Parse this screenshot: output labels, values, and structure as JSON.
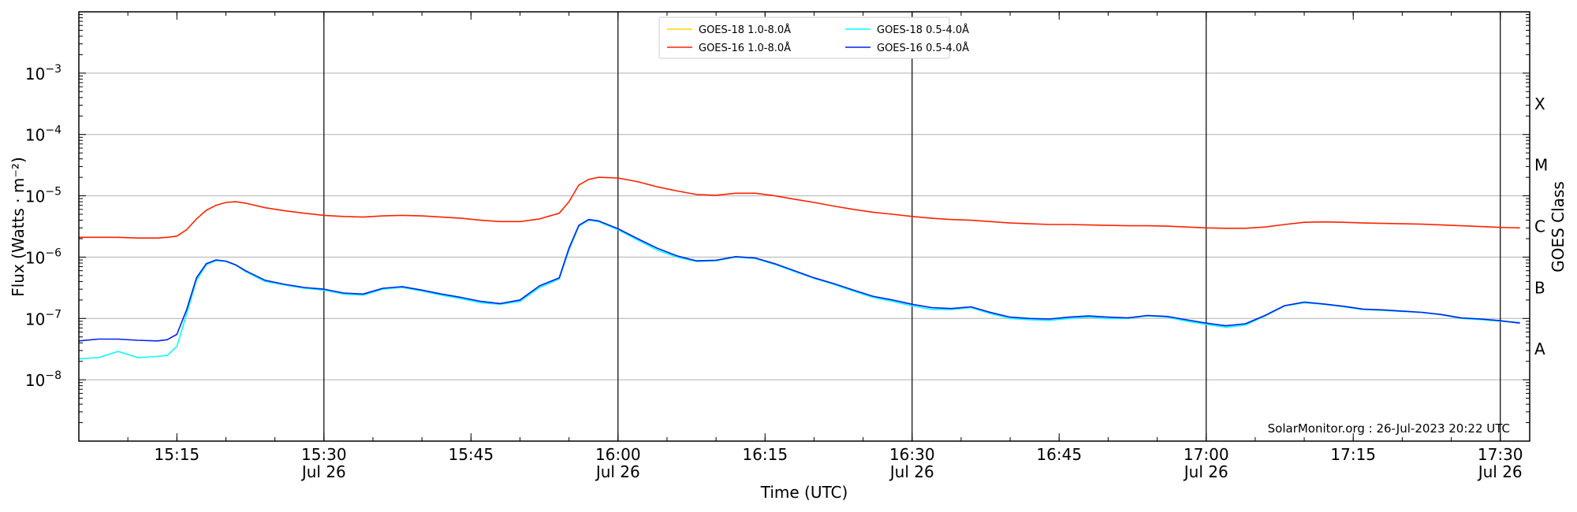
{
  "chart_data": {
    "type": "line",
    "title": "",
    "xlabel": "Time (UTC)",
    "ylabel": "Flux (Watts · m⁻²)",
    "y2label": "GOES Class",
    "yscale": "log",
    "ylim": [
      1e-09,
      0.01
    ],
    "xlim": [
      "15:05",
      "17:33"
    ],
    "grid": "horizontal at decades",
    "legend_position": "top-center",
    "x_ticks": [
      {
        "t": "15:15",
        "label": "15:15",
        "sublabel": ""
      },
      {
        "t": "15:30",
        "label": "15:30",
        "sublabel": "Jul 26"
      },
      {
        "t": "15:45",
        "label": "15:45",
        "sublabel": ""
      },
      {
        "t": "16:00",
        "label": "16:00",
        "sublabel": "Jul 26"
      },
      {
        "t": "16:15",
        "label": "16:15",
        "sublabel": ""
      },
      {
        "t": "16:30",
        "label": "16:30",
        "sublabel": "Jul 26"
      },
      {
        "t": "16:45",
        "label": "16:45",
        "sublabel": ""
      },
      {
        "t": "17:00",
        "label": "17:00",
        "sublabel": "Jul 26"
      },
      {
        "t": "17:15",
        "label": "17:15",
        "sublabel": ""
      },
      {
        "t": "17:30",
        "label": "17:30",
        "sublabel": "Jul 26"
      }
    ],
    "vertical_lines": [
      "15:30",
      "16:00",
      "16:30",
      "17:00",
      "17:30"
    ],
    "y_ticks": [
      {
        "value": 1e-08,
        "base": "10",
        "exp": "−8"
      },
      {
        "value": 1e-07,
        "base": "10",
        "exp": "−7"
      },
      {
        "value": 1e-06,
        "base": "10",
        "exp": "−6"
      },
      {
        "value": 1e-05,
        "base": "10",
        "exp": "−5"
      },
      {
        "value": 0.0001,
        "base": "10",
        "exp": "−4"
      },
      {
        "value": 0.001,
        "base": "10",
        "exp": "−3"
      }
    ],
    "goes_classes": [
      {
        "label": "A",
        "value": 3.16e-08
      },
      {
        "label": "B",
        "value": 3.16e-07
      },
      {
        "label": "C",
        "value": 3.16e-06
      },
      {
        "label": "M",
        "value": 3.16e-05
      },
      {
        "label": "X",
        "value": 0.000316
      }
    ],
    "annotation": "SolarMonitor.org : 26-Jul-2023 20:22 UTC",
    "series": [
      {
        "name": "GOES-18 1.0-8.0Å",
        "color": "#ffd700",
        "points": []
      },
      {
        "name": "GOES-18 0.5-4.0Å",
        "color": "#00ffff",
        "points": [
          [
            "15:05",
            2.2e-08
          ],
          [
            "15:07",
            2.3e-08
          ],
          [
            "15:09",
            2.9e-08
          ],
          [
            "15:11",
            2.3e-08
          ],
          [
            "15:13",
            2.4e-08
          ],
          [
            "15:14",
            2.5e-08
          ],
          [
            "15:15",
            3.5e-08
          ],
          [
            "15:16",
            1.2e-07
          ],
          [
            "15:17",
            4.2e-07
          ],
          [
            "15:18",
            7.5e-07
          ],
          [
            "15:19",
            8.8e-07
          ],
          [
            "15:20",
            8.5e-07
          ],
          [
            "15:21",
            7.4e-07
          ],
          [
            "15:22",
            5.8e-07
          ],
          [
            "15:24",
            4e-07
          ],
          [
            "15:26",
            3.5e-07
          ],
          [
            "15:28",
            3.1e-07
          ],
          [
            "15:30",
            2.9e-07
          ],
          [
            "15:32",
            2.5e-07
          ],
          [
            "15:34",
            2.4e-07
          ],
          [
            "15:36",
            3e-07
          ],
          [
            "15:38",
            3.2e-07
          ],
          [
            "15:40",
            2.8e-07
          ],
          [
            "15:42",
            2.4e-07
          ],
          [
            "15:44",
            2.1e-07
          ],
          [
            "15:46",
            1.8e-07
          ],
          [
            "15:48",
            1.7e-07
          ],
          [
            "15:50",
            1.9e-07
          ],
          [
            "15:52",
            3.2e-07
          ],
          [
            "15:54",
            4.4e-07
          ],
          [
            "15:55",
            1.3e-06
          ],
          [
            "15:56",
            3.2e-06
          ],
          [
            "15:57",
            4e-06
          ],
          [
            "15:58",
            3.8e-06
          ],
          [
            "16:00",
            2.8e-06
          ],
          [
            "16:02",
            1.9e-06
          ],
          [
            "16:04",
            1.3e-06
          ],
          [
            "16:06",
            1e-06
          ],
          [
            "16:08",
            8.5e-07
          ],
          [
            "16:10",
            8.7e-07
          ],
          [
            "16:12",
            1e-06
          ],
          [
            "16:14",
            9.5e-07
          ],
          [
            "16:16",
            7.6e-07
          ],
          [
            "16:18",
            5.8e-07
          ],
          [
            "16:20",
            4.5e-07
          ],
          [
            "16:22",
            3.6e-07
          ],
          [
            "16:24",
            2.8e-07
          ],
          [
            "16:26",
            2.2e-07
          ],
          [
            "16:28",
            1.9e-07
          ],
          [
            "16:30",
            1.6e-07
          ],
          [
            "16:32",
            1.4e-07
          ],
          [
            "16:34",
            1.4e-07
          ],
          [
            "16:36",
            1.5e-07
          ],
          [
            "16:38",
            1.2e-07
          ],
          [
            "16:40",
            1e-07
          ],
          [
            "16:42",
            9.5e-08
          ],
          [
            "16:44",
            9.3e-08
          ],
          [
            "16:46",
            1e-07
          ],
          [
            "16:48",
            1.05e-07
          ],
          [
            "16:50",
            1e-07
          ],
          [
            "16:52",
            1e-07
          ],
          [
            "16:54",
            1.1e-07
          ],
          [
            "16:56",
            1.05e-07
          ],
          [
            "16:58",
            9e-08
          ],
          [
            "17:00",
            8e-08
          ],
          [
            "17:02",
            7.2e-08
          ],
          [
            "17:04",
            7.8e-08
          ],
          [
            "17:06",
            1.1e-07
          ],
          [
            "17:08",
            1.6e-07
          ],
          [
            "17:10",
            1.8e-07
          ],
          [
            "17:12",
            1.7e-07
          ],
          [
            "17:14",
            1.55e-07
          ],
          [
            "17:16",
            1.4e-07
          ],
          [
            "17:18",
            1.35e-07
          ],
          [
            "17:20",
            1.3e-07
          ],
          [
            "17:22",
            1.25e-07
          ],
          [
            "17:24",
            1.15e-07
          ],
          [
            "17:26",
            1e-07
          ],
          [
            "17:28",
            9.6e-08
          ],
          [
            "17:30",
            9e-08
          ],
          [
            "17:32",
            8.6e-08
          ]
        ]
      },
      {
        "name": "GOES-16 1.0-8.0Å",
        "color": "#ff2200",
        "points": [
          [
            "15:05",
            2.1e-06
          ],
          [
            "15:07",
            2.1e-06
          ],
          [
            "15:09",
            2.1e-06
          ],
          [
            "15:11",
            2.05e-06
          ],
          [
            "15:13",
            2.05e-06
          ],
          [
            "15:14",
            2.1e-06
          ],
          [
            "15:15",
            2.2e-06
          ],
          [
            "15:16",
            2.8e-06
          ],
          [
            "15:17",
            4.2e-06
          ],
          [
            "15:18",
            5.8e-06
          ],
          [
            "15:19",
            7e-06
          ],
          [
            "15:20",
            7.8e-06
          ],
          [
            "15:21",
            8e-06
          ],
          [
            "15:22",
            7.6e-06
          ],
          [
            "15:24",
            6.4e-06
          ],
          [
            "15:26",
            5.7e-06
          ],
          [
            "15:28",
            5.2e-06
          ],
          [
            "15:30",
            4.8e-06
          ],
          [
            "15:32",
            4.6e-06
          ],
          [
            "15:34",
            4.5e-06
          ],
          [
            "15:36",
            4.7e-06
          ],
          [
            "15:38",
            4.8e-06
          ],
          [
            "15:40",
            4.7e-06
          ],
          [
            "15:42",
            4.5e-06
          ],
          [
            "15:44",
            4.3e-06
          ],
          [
            "15:46",
            4e-06
          ],
          [
            "15:48",
            3.8e-06
          ],
          [
            "15:50",
            3.8e-06
          ],
          [
            "15:52",
            4.2e-06
          ],
          [
            "15:54",
            5.2e-06
          ],
          [
            "15:55",
            8e-06
          ],
          [
            "15:56",
            1.5e-05
          ],
          [
            "15:57",
            1.85e-05
          ],
          [
            "15:58",
            2e-05
          ],
          [
            "16:00",
            1.95e-05
          ],
          [
            "16:02",
            1.7e-05
          ],
          [
            "16:04",
            1.4e-05
          ],
          [
            "16:06",
            1.2e-05
          ],
          [
            "16:08",
            1.05e-05
          ],
          [
            "16:10",
            1.02e-05
          ],
          [
            "16:12",
            1.1e-05
          ],
          [
            "16:14",
            1.1e-05
          ],
          [
            "16:16",
            1e-05
          ],
          [
            "16:18",
            8.8e-06
          ],
          [
            "16:20",
            7.8e-06
          ],
          [
            "16:22",
            6.8e-06
          ],
          [
            "16:24",
            6e-06
          ],
          [
            "16:26",
            5.4e-06
          ],
          [
            "16:28",
            5e-06
          ],
          [
            "16:30",
            4.6e-06
          ],
          [
            "16:32",
            4.3e-06
          ],
          [
            "16:34",
            4.1e-06
          ],
          [
            "16:36",
            4e-06
          ],
          [
            "16:38",
            3.8e-06
          ],
          [
            "16:40",
            3.6e-06
          ],
          [
            "16:42",
            3.5e-06
          ],
          [
            "16:44",
            3.4e-06
          ],
          [
            "16:46",
            3.4e-06
          ],
          [
            "16:48",
            3.35e-06
          ],
          [
            "16:50",
            3.3e-06
          ],
          [
            "16:52",
            3.25e-06
          ],
          [
            "16:54",
            3.25e-06
          ],
          [
            "16:56",
            3.2e-06
          ],
          [
            "16:58",
            3.1e-06
          ],
          [
            "17:00",
            3e-06
          ],
          [
            "17:02",
            2.95e-06
          ],
          [
            "17:04",
            2.95e-06
          ],
          [
            "17:06",
            3.1e-06
          ],
          [
            "17:08",
            3.4e-06
          ],
          [
            "17:10",
            3.7e-06
          ],
          [
            "17:12",
            3.75e-06
          ],
          [
            "17:14",
            3.7e-06
          ],
          [
            "17:16",
            3.6e-06
          ],
          [
            "17:18",
            3.55e-06
          ],
          [
            "17:20",
            3.5e-06
          ],
          [
            "17:22",
            3.45e-06
          ],
          [
            "17:24",
            3.35e-06
          ],
          [
            "17:26",
            3.25e-06
          ],
          [
            "17:28",
            3.15e-06
          ],
          [
            "17:30",
            3.05e-06
          ],
          [
            "17:32",
            3e-06
          ]
        ]
      },
      {
        "name": "GOES-16 0.5-4.0Å",
        "color": "#0022ee",
        "points": [
          [
            "15:05",
            4.3e-08
          ],
          [
            "15:07",
            4.6e-08
          ],
          [
            "15:09",
            4.6e-08
          ],
          [
            "15:11",
            4.4e-08
          ],
          [
            "15:13",
            4.3e-08
          ],
          [
            "15:14",
            4.5e-08
          ],
          [
            "15:15",
            5.5e-08
          ],
          [
            "15:16",
            1.4e-07
          ],
          [
            "15:17",
            4.6e-07
          ],
          [
            "15:18",
            7.8e-07
          ],
          [
            "15:19",
            9e-07
          ],
          [
            "15:20",
            8.6e-07
          ],
          [
            "15:21",
            7.5e-07
          ],
          [
            "15:22",
            6e-07
          ],
          [
            "15:24",
            4.2e-07
          ],
          [
            "15:26",
            3.6e-07
          ],
          [
            "15:28",
            3.2e-07
          ],
          [
            "15:30",
            3e-07
          ],
          [
            "15:32",
            2.6e-07
          ],
          [
            "15:34",
            2.5e-07
          ],
          [
            "15:36",
            3.1e-07
          ],
          [
            "15:38",
            3.3e-07
          ],
          [
            "15:40",
            2.9e-07
          ],
          [
            "15:42",
            2.5e-07
          ],
          [
            "15:44",
            2.2e-07
          ],
          [
            "15:46",
            1.9e-07
          ],
          [
            "15:48",
            1.75e-07
          ],
          [
            "15:50",
            2e-07
          ],
          [
            "15:52",
            3.4e-07
          ],
          [
            "15:54",
            4.6e-07
          ],
          [
            "15:55",
            1.4e-06
          ],
          [
            "15:56",
            3.3e-06
          ],
          [
            "15:57",
            4.1e-06
          ],
          [
            "15:58",
            3.9e-06
          ],
          [
            "16:00",
            2.9e-06
          ],
          [
            "16:02",
            2e-06
          ],
          [
            "16:04",
            1.4e-06
          ],
          [
            "16:06",
            1.05e-06
          ],
          [
            "16:08",
            8.7e-07
          ],
          [
            "16:10",
            8.9e-07
          ],
          [
            "16:12",
            1.02e-06
          ],
          [
            "16:14",
            9.7e-07
          ],
          [
            "16:16",
            7.8e-07
          ],
          [
            "16:18",
            6e-07
          ],
          [
            "16:20",
            4.6e-07
          ],
          [
            "16:22",
            3.7e-07
          ],
          [
            "16:24",
            2.9e-07
          ],
          [
            "16:26",
            2.3e-07
          ],
          [
            "16:28",
            2e-07
          ],
          [
            "16:30",
            1.7e-07
          ],
          [
            "16:32",
            1.5e-07
          ],
          [
            "16:34",
            1.45e-07
          ],
          [
            "16:36",
            1.55e-07
          ],
          [
            "16:38",
            1.25e-07
          ],
          [
            "16:40",
            1.05e-07
          ],
          [
            "16:42",
            1e-07
          ],
          [
            "16:44",
            9.8e-08
          ],
          [
            "16:46",
            1.05e-07
          ],
          [
            "16:48",
            1.1e-07
          ],
          [
            "16:50",
            1.05e-07
          ],
          [
            "16:52",
            1.02e-07
          ],
          [
            "16:54",
            1.12e-07
          ],
          [
            "16:56",
            1.08e-07
          ],
          [
            "16:58",
            9.5e-08
          ],
          [
            "17:00",
            8.4e-08
          ],
          [
            "17:02",
            7.6e-08
          ],
          [
            "17:04",
            8.2e-08
          ],
          [
            "17:06",
            1.12e-07
          ],
          [
            "17:08",
            1.62e-07
          ],
          [
            "17:10",
            1.85e-07
          ],
          [
            "17:12",
            1.72e-07
          ],
          [
            "17:14",
            1.58e-07
          ],
          [
            "17:16",
            1.42e-07
          ],
          [
            "17:18",
            1.38e-07
          ],
          [
            "17:20",
            1.32e-07
          ],
          [
            "17:22",
            1.26e-07
          ],
          [
            "17:24",
            1.16e-07
          ],
          [
            "17:26",
            1.02e-07
          ],
          [
            "17:28",
            9.8e-08
          ],
          [
            "17:30",
            9.2e-08
          ],
          [
            "17:32",
            8.4e-08
          ]
        ]
      }
    ]
  }
}
